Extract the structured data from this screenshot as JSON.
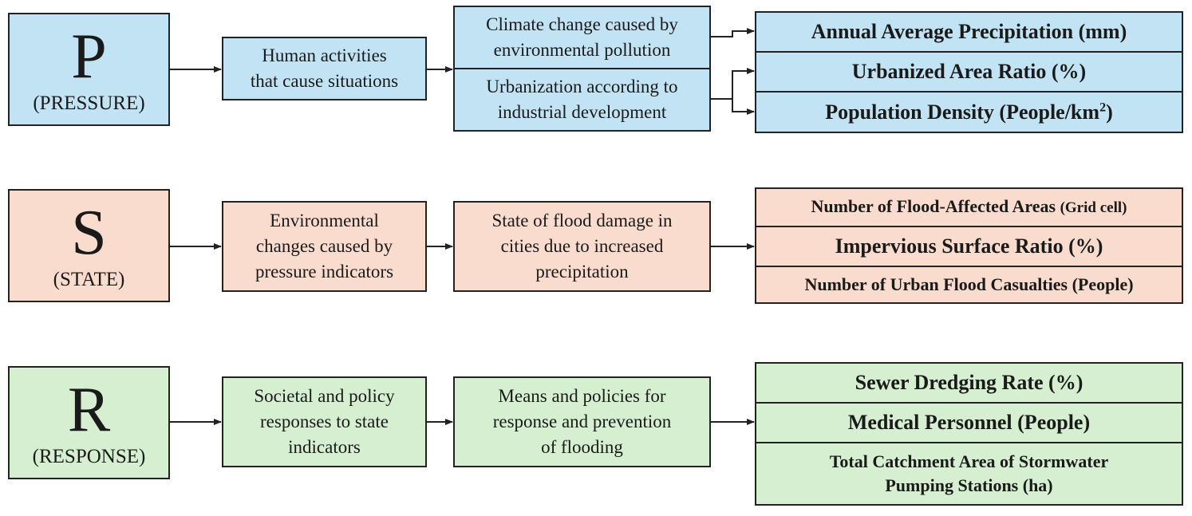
{
  "pressure": {
    "letter": "P",
    "label": "(PRESSURE)",
    "box1": [
      "Human activities",
      "that cause situations"
    ],
    "box2a": [
      "Climate change caused by",
      "environmental pollution"
    ],
    "box2b": [
      "Urbanization according to",
      "industrial development"
    ],
    "indicators": {
      "precip": "Annual Average Precipitation (mm)",
      "urban": "Urbanized Area Ratio (%)",
      "density_main": "Population Density (People/km",
      "density_sup": "2",
      "density_end": ")"
    }
  },
  "state": {
    "letter": "S",
    "label": "(STATE)",
    "box1": [
      "Environmental",
      "changes caused by",
      "pressure indicators"
    ],
    "box2": [
      "State of flood damage in",
      "cities due to increased",
      "precipitation"
    ],
    "indicators": {
      "flood_main": "Number of Flood-Affected Areas",
      "flood_unit": "(Grid cell)",
      "impervious": "Impervious Surface Ratio (%)",
      "casualties": "Number of Urban Flood Casualties (People)"
    }
  },
  "response": {
    "letter": "R",
    "label": "(RESPONSE)",
    "box1": [
      "Societal and policy",
      "responses to state",
      "indicators"
    ],
    "box2": [
      "Means and policies for",
      "response and prevention",
      "of flooding"
    ],
    "indicators": {
      "sewer": "Sewer Dredging Rate (%)",
      "medical": "Medical Personnel (People)",
      "catchment": [
        "Total Catchment Area of Stormwater",
        "Pumping Stations (ha)"
      ]
    }
  },
  "colors": {
    "pressure_fill": "#c1e3f4",
    "state_fill": "#f9dccd",
    "response_fill": "#d5efd0",
    "stroke": "#222222"
  }
}
